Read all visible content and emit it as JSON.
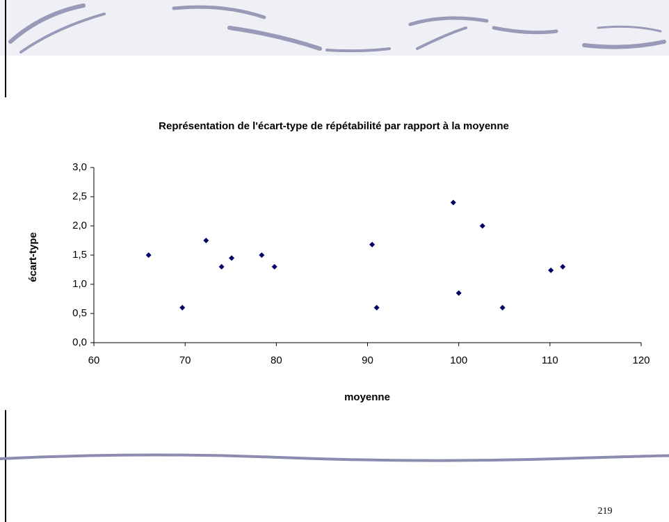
{
  "chart_data": {
    "type": "scatter",
    "title": "Représentation de l'écart-type de répétabilité par rapport à la moyenne",
    "xlabel": "moyenne",
    "ylabel": "écart-type",
    "x": [
      66.0,
      69.7,
      72.3,
      74.0,
      75.1,
      78.4,
      79.8,
      90.5,
      91.0,
      99.4,
      100.0,
      102.6,
      104.8,
      110.1,
      111.4
    ],
    "series": [
      {
        "color": "#000066",
        "values": [
          1.5,
          0.6,
          1.75,
          1.3,
          1.45,
          1.5,
          1.3,
          1.68,
          0.6,
          2.4,
          0.85,
          2.0,
          0.6,
          1.24,
          1.3
        ]
      }
    ],
    "xlim": [
      60,
      120
    ],
    "xticks": [
      60,
      70,
      80,
      90,
      100,
      110,
      120
    ],
    "ylim": [
      0,
      3
    ],
    "yticks": [
      {
        "value": 0,
        "label": "0,0"
      },
      {
        "value": 0.5,
        "label": "0,5"
      },
      {
        "value": 1,
        "label": "1,0"
      },
      {
        "value": 1.5,
        "label": "1,5"
      },
      {
        "value": 2,
        "label": "2,0"
      },
      {
        "value": 2.5,
        "label": "2,5"
      },
      {
        "value": 3,
        "label": "3,0"
      }
    ],
    "grid": false
  },
  "page_number": "219"
}
